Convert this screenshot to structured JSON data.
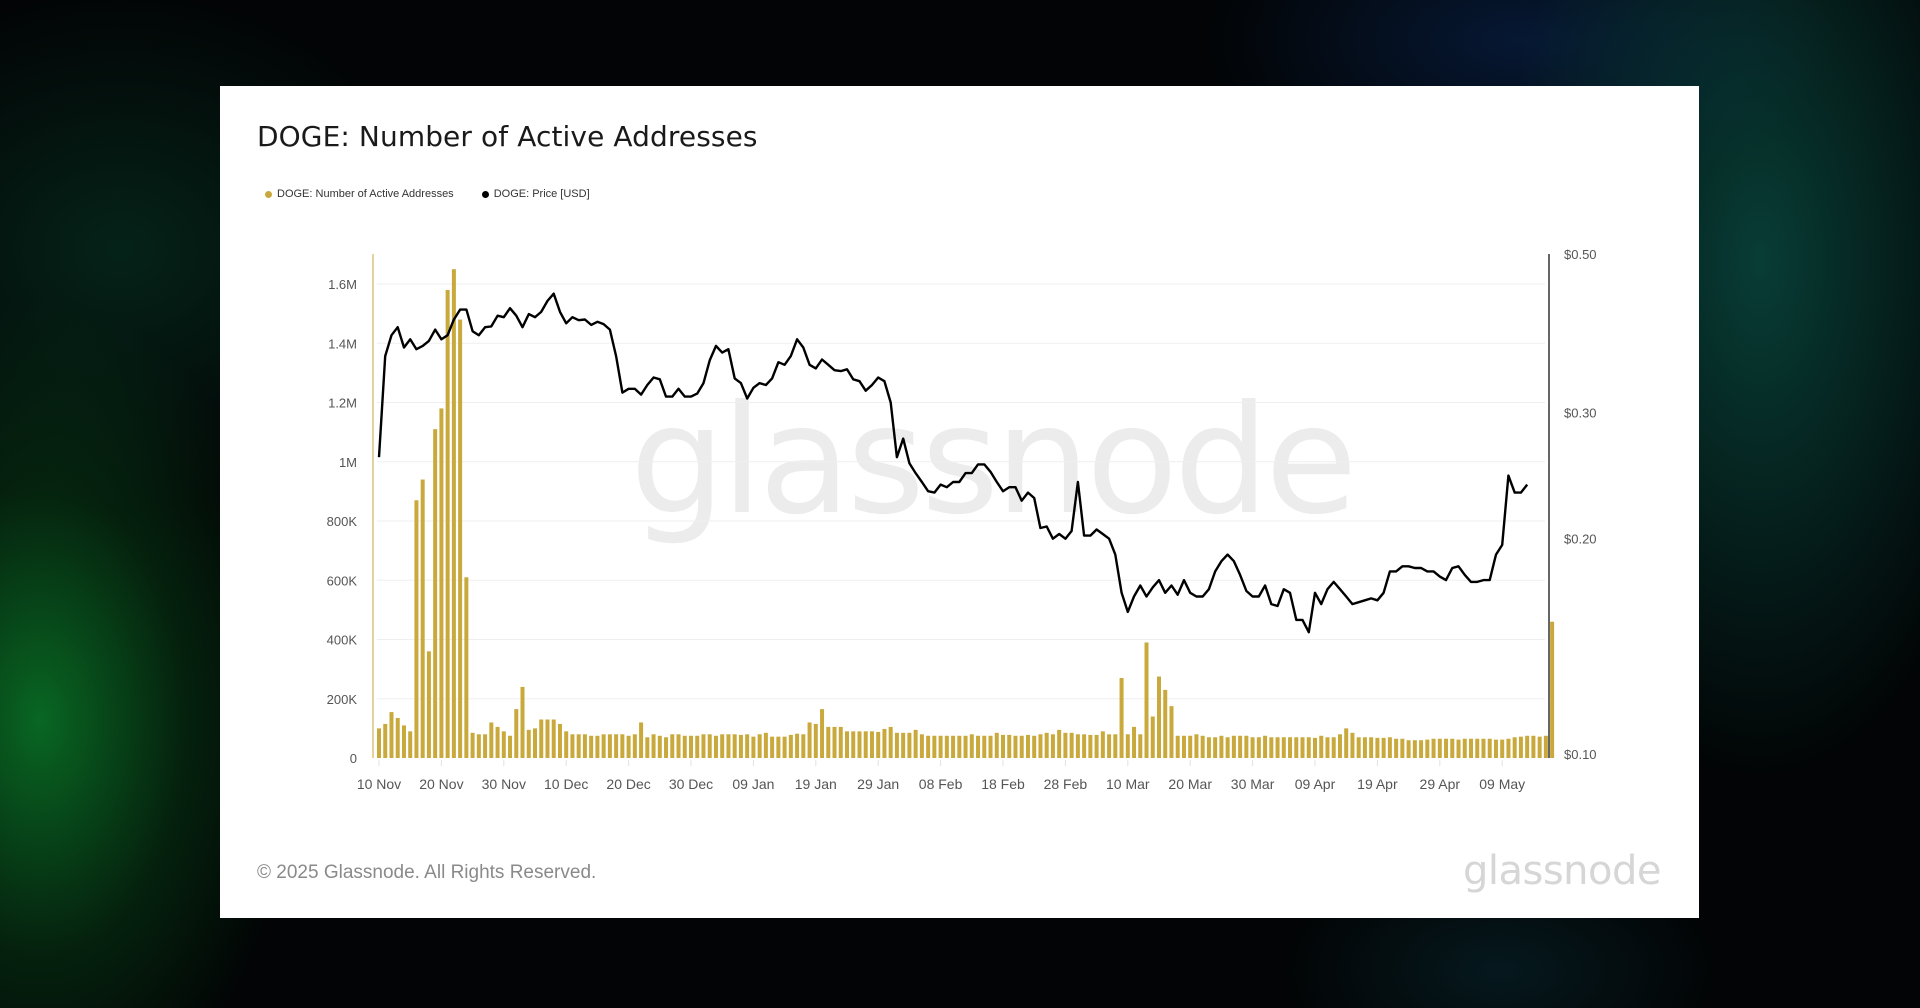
{
  "card": {
    "title": "DOGE: Number of Active Addresses",
    "legend": [
      {
        "label": "DOGE: Number of Active Addresses",
        "color": "#C9A93B"
      },
      {
        "label": "DOGE: Price [USD]",
        "color": "#000000"
      }
    ],
    "watermark": "glassnode",
    "footer": "© 2025 Glassnode. All Rights Reserved.",
    "brand": "glassnode"
  },
  "colors": {
    "bars": "#C9A93B",
    "price_line": "#000000",
    "grid": "#efefef",
    "left_axis": "#d8c47e",
    "right_axis": "#333333"
  },
  "chart_data": {
    "type": "bar",
    "title": "DOGE: Number of Active Addresses",
    "xlabel": "",
    "ylabel": "",
    "start_date": "2024-11-10",
    "x_tick_labels": [
      "10 Nov",
      "20 Nov",
      "30 Nov",
      "10 Dec",
      "20 Dec",
      "30 Dec",
      "09 Jan",
      "19 Jan",
      "29 Jan",
      "08 Feb",
      "18 Feb",
      "28 Feb",
      "10 Mar",
      "20 Mar",
      "30 Mar",
      "09 Apr",
      "19 Apr",
      "29 Apr",
      "09 May"
    ],
    "left_axis": {
      "ticks": [
        0,
        200000,
        400000,
        600000,
        800000,
        1000000,
        1200000,
        1400000,
        1600000
      ],
      "tick_labels": [
        "0",
        "200K",
        "400K",
        "600K",
        "800K",
        "1M",
        "1.2M",
        "1.4M",
        "1.6M"
      ],
      "ylim": [
        0,
        1700000
      ]
    },
    "right_axis": {
      "scale": "log",
      "ticks": [
        0.1,
        0.2,
        0.3,
        0.5
      ],
      "tick_labels": [
        "$0.10",
        "$0.20",
        "$0.30",
        "$0.50"
      ],
      "ylim": [
        0.1,
        0.5
      ]
    },
    "grid": true,
    "legend_position": "top-left",
    "series": [
      {
        "name": "DOGE: Number of Active Addresses",
        "type": "bar",
        "axis": "left",
        "values": [
          100000,
          115000,
          155000,
          135000,
          110000,
          90000,
          870000,
          940000,
          360000,
          1110000,
          1180000,
          1580000,
          1650000,
          1480000,
          610000,
          85000,
          80000,
          80000,
          120000,
          105000,
          90000,
          75000,
          165000,
          240000,
          95000,
          100000,
          130000,
          130000,
          130000,
          115000,
          90000,
          80000,
          80000,
          80000,
          75000,
          75000,
          80000,
          80000,
          80000,
          80000,
          75000,
          80000,
          120000,
          70000,
          80000,
          75000,
          70000,
          80000,
          80000,
          75000,
          75000,
          75000,
          80000,
          80000,
          75000,
          80000,
          80000,
          80000,
          78000,
          80000,
          72000,
          80000,
          85000,
          72000,
          72000,
          72000,
          78000,
          82000,
          80000,
          120000,
          115000,
          165000,
          105000,
          105000,
          105000,
          90000,
          90000,
          90000,
          90000,
          90000,
          88000,
          98000,
          105000,
          85000,
          85000,
          85000,
          95000,
          80000,
          75000,
          75000,
          75000,
          75000,
          75000,
          75000,
          75000,
          80000,
          75000,
          75000,
          75000,
          85000,
          78000,
          78000,
          75000,
          75000,
          78000,
          75000,
          80000,
          85000,
          80000,
          95000,
          85000,
          85000,
          80000,
          80000,
          78000,
          78000,
          90000,
          80000,
          80000,
          270000,
          80000,
          105000,
          80000,
          390000,
          140000,
          275000,
          230000,
          175000,
          75000,
          75000,
          75000,
          80000,
          75000,
          70000,
          70000,
          75000,
          70000,
          75000,
          75000,
          75000,
          70000,
          70000,
          75000,
          70000,
          70000,
          70000,
          70000,
          70000,
          70000,
          70000,
          68000,
          75000,
          70000,
          70000,
          80000,
          100000,
          85000,
          70000,
          70000,
          70000,
          68000,
          68000,
          70000,
          65000,
          65000,
          60000,
          60000,
          60000,
          62000,
          65000,
          65000,
          65000,
          65000,
          62000,
          65000,
          65000,
          65000,
          65000,
          65000,
          62000,
          62000,
          65000,
          70000,
          72000,
          75000,
          75000,
          72000,
          75000,
          460000
        ]
      },
      {
        "name": "DOGE: Price [USD]",
        "type": "line",
        "axis": "right",
        "values": [
          0.26,
          0.36,
          0.385,
          0.395,
          0.37,
          0.38,
          0.368,
          0.372,
          0.378,
          0.392,
          0.38,
          0.385,
          0.405,
          0.418,
          0.418,
          0.39,
          0.385,
          0.395,
          0.396,
          0.41,
          0.408,
          0.42,
          0.41,
          0.395,
          0.412,
          0.408,
          0.415,
          0.43,
          0.44,
          0.415,
          0.4,
          0.408,
          0.404,
          0.405,
          0.398,
          0.402,
          0.399,
          0.392,
          0.36,
          0.32,
          0.324,
          0.324,
          0.318,
          0.328,
          0.336,
          0.334,
          0.316,
          0.316,
          0.324,
          0.316,
          0.316,
          0.319,
          0.33,
          0.355,
          0.372,
          0.364,
          0.368,
          0.335,
          0.33,
          0.314,
          0.325,
          0.33,
          0.328,
          0.335,
          0.353,
          0.35,
          0.36,
          0.38,
          0.37,
          0.35,
          0.346,
          0.356,
          0.35,
          0.344,
          0.343,
          0.345,
          0.334,
          0.332,
          0.322,
          0.328,
          0.336,
          0.332,
          0.31,
          0.26,
          0.276,
          0.255,
          0.247,
          0.24,
          0.233,
          0.232,
          0.238,
          0.236,
          0.24,
          0.24,
          0.247,
          0.247,
          0.254,
          0.254,
          0.248,
          0.24,
          0.233,
          0.236,
          0.236,
          0.226,
          0.232,
          0.228,
          0.207,
          0.208,
          0.2,
          0.203,
          0.2,
          0.205,
          0.24,
          0.202,
          0.202,
          0.206,
          0.203,
          0.2,
          0.19,
          0.168,
          0.158,
          0.166,
          0.172,
          0.166,
          0.171,
          0.175,
          0.168,
          0.172,
          0.167,
          0.175,
          0.168,
          0.166,
          0.166,
          0.17,
          0.18,
          0.186,
          0.19,
          0.186,
          0.178,
          0.169,
          0.166,
          0.166,
          0.172,
          0.162,
          0.161,
          0.17,
          0.168,
          0.154,
          0.154,
          0.148,
          0.168,
          0.162,
          0.17,
          0.174,
          0.17,
          0.166,
          0.162,
          0.163,
          0.164,
          0.165,
          0.164,
          0.168,
          0.18,
          0.18,
          0.183,
          0.183,
          0.182,
          0.182,
          0.18,
          0.18,
          0.177,
          0.175,
          0.182,
          0.183,
          0.178,
          0.174,
          0.174,
          0.175,
          0.175,
          0.19,
          0.196,
          0.245,
          0.232,
          0.232,
          0.238
        ]
      }
    ]
  }
}
